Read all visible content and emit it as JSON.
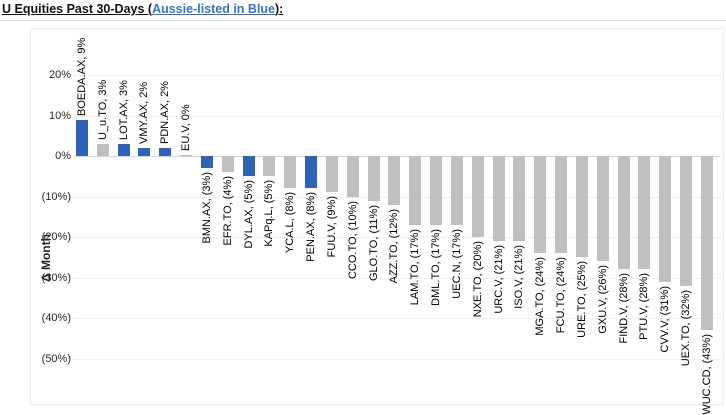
{
  "title": {
    "prefix": "U Equities Past 30-Days (",
    "highlight": "Aussie-listed in Blue",
    "suffix": "):"
  },
  "colors": {
    "aussie_blue": "#2f63ba",
    "other_gray": "#bfbfbf",
    "title_highlight": "#3273d1"
  },
  "chart_data": {
    "type": "bar",
    "title": "U Equities Past 30-Days (Aussie-listed in Blue):",
    "xlabel": "",
    "ylabel": "Δ Month",
    "ylim": [
      -55,
      25
    ],
    "grid": "horizontal-dotted",
    "legend": "none (blue = Aussie-listed, gray = other)",
    "yticks": [
      {
        "value": 20,
        "label": "20%"
      },
      {
        "value": 10,
        "label": "10%"
      },
      {
        "value": 0,
        "label": "0%"
      },
      {
        "value": -10,
        "label": "(10%)"
      },
      {
        "value": -20,
        "label": "(20%)"
      },
      {
        "value": -30,
        "label": "(30%)"
      },
      {
        "value": -40,
        "label": "(40%)"
      },
      {
        "value": -50,
        "label": "(50%)"
      }
    ],
    "bars": [
      {
        "ticker": "BOEDA.AX",
        "value": 9,
        "label": "BOEDA.AX, 9%",
        "aussie": true
      },
      {
        "ticker": "U_u.TO",
        "value": 3,
        "label": "U_u.TO, 3%",
        "aussie": false
      },
      {
        "ticker": "LOT.AX",
        "value": 3,
        "label": "LOT.AX, 3%",
        "aussie": true
      },
      {
        "ticker": "VMY.AX",
        "value": 2,
        "label": "VMY.AX, 2%",
        "aussie": true
      },
      {
        "ticker": "PDN.AX",
        "value": 2,
        "label": "PDN.AX, 2%",
        "aussie": true
      },
      {
        "ticker": "EU.V",
        "value": 0,
        "label": "EU.V, 0%",
        "aussie": false
      },
      {
        "ticker": "BMN.AX",
        "value": -3,
        "label": "BMN.AX, (3%)",
        "aussie": true
      },
      {
        "ticker": "EFR.TO",
        "value": -4,
        "label": "EFR.TO, (4%)",
        "aussie": false
      },
      {
        "ticker": "DYL.AX",
        "value": -5,
        "label": "DYL.AX, (5%)",
        "aussie": true
      },
      {
        "ticker": "KAPq.L",
        "value": -5,
        "label": "KAPq.L, (5%)",
        "aussie": false
      },
      {
        "ticker": "YCA.L",
        "value": -8,
        "label": "YCA.L, (8%)",
        "aussie": false
      },
      {
        "ticker": "PEN.AX",
        "value": -8,
        "label": "PEN.AX, (8%)",
        "aussie": true
      },
      {
        "ticker": "FUU.V",
        "value": -9,
        "label": "FUU.V, (9%)",
        "aussie": false
      },
      {
        "ticker": "CCO.TO",
        "value": -10,
        "label": "CCO.TO, (10%)",
        "aussie": false
      },
      {
        "ticker": "GLO.TO",
        "value": -11,
        "label": "GLO.TO, (11%)",
        "aussie": false
      },
      {
        "ticker": "AZZ.TO",
        "value": -12,
        "label": "AZZ.TO, (12%)",
        "aussie": false
      },
      {
        "ticker": "LAM.TO",
        "value": -17,
        "label": "LAM.TO, (17%)",
        "aussie": false
      },
      {
        "ticker": "DML.TO",
        "value": -17,
        "label": "DML.TO, (17%)",
        "aussie": false
      },
      {
        "ticker": "UEC.N",
        "value": -17,
        "label": "UEC.N, (17%)",
        "aussie": false
      },
      {
        "ticker": "NXE.TO",
        "value": -20,
        "label": "NXE.TO, (20%)",
        "aussie": false
      },
      {
        "ticker": "URC.V",
        "value": -21,
        "label": "URC.V, (21%)",
        "aussie": false
      },
      {
        "ticker": "ISO.V",
        "value": -21,
        "label": "ISO.V, (21%)",
        "aussie": false
      },
      {
        "ticker": "MGA.TO",
        "value": -24,
        "label": "MGA.TO, (24%)",
        "aussie": false
      },
      {
        "ticker": "FCU.TO",
        "value": -24,
        "label": "FCU.TO, (24%)",
        "aussie": false
      },
      {
        "ticker": "URE.TO",
        "value": -25,
        "label": "URE.TO, (25%)",
        "aussie": false
      },
      {
        "ticker": "GXU.V",
        "value": -26,
        "label": "GXU.V, (26%)",
        "aussie": false
      },
      {
        "ticker": "FIND.V",
        "value": -28,
        "label": "FIND.V, (28%)",
        "aussie": false
      },
      {
        "ticker": "PTU.V",
        "value": -28,
        "label": "PTU.V, (28%)",
        "aussie": false
      },
      {
        "ticker": "CVV.V",
        "value": -31,
        "label": "CVV.V, (31%)",
        "aussie": false
      },
      {
        "ticker": "UEX.TO",
        "value": -32,
        "label": "UEX.TO, (32%)",
        "aussie": false
      },
      {
        "ticker": "WUC.CD",
        "value": -43,
        "label": "WUC.CD, (43%)",
        "aussie": false
      }
    ]
  }
}
